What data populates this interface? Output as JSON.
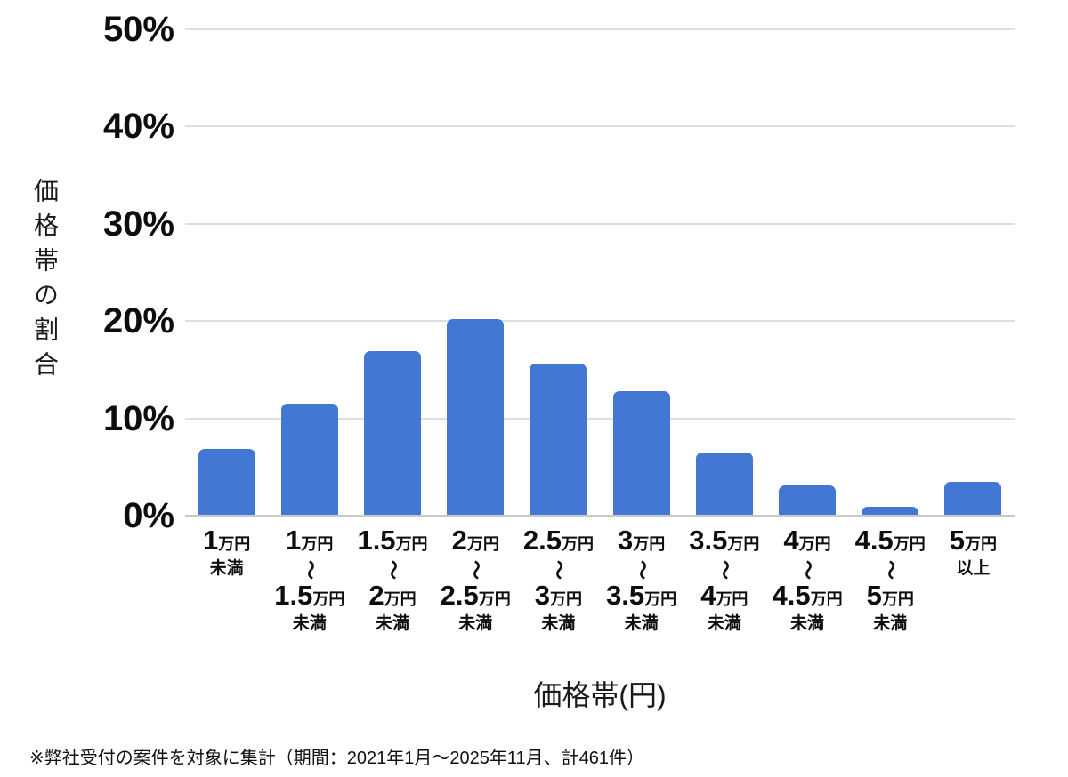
{
  "chart_data": {
    "type": "bar",
    "title": "",
    "xlabel": "価格帯(円)",
    "ylabel": "価格帯の割合",
    "ylim": [
      0,
      50
    ],
    "yticks": [
      {
        "value": 0,
        "label": "0%"
      },
      {
        "value": 10,
        "label": "10%"
      },
      {
        "value": 20,
        "label": "20%"
      },
      {
        "value": 30,
        "label": "30%"
      },
      {
        "value": 40,
        "label": "40%"
      },
      {
        "value": 50,
        "label": "50%"
      }
    ],
    "grid": true,
    "legend": "none",
    "bar_color": "#4377d4",
    "separator": "～",
    "categories": [
      {
        "main": "1",
        "unit": "万円",
        "to_main": null,
        "to_unit": null,
        "tail": "未満"
      },
      {
        "main": "1",
        "unit": "万円",
        "to_main": "1.5",
        "to_unit": "万円",
        "tail": "未満"
      },
      {
        "main": "1.5",
        "unit": "万円",
        "to_main": "2",
        "to_unit": "万円",
        "tail": "未満"
      },
      {
        "main": "2",
        "unit": "万円",
        "to_main": "2.5",
        "to_unit": "万円",
        "tail": "未満"
      },
      {
        "main": "2.5",
        "unit": "万円",
        "to_main": "3",
        "to_unit": "万円",
        "tail": "未満"
      },
      {
        "main": "3",
        "unit": "万円",
        "to_main": "3.5",
        "to_unit": "万円",
        "tail": "未満"
      },
      {
        "main": "3.5",
        "unit": "万円",
        "to_main": "4",
        "to_unit": "万円",
        "tail": "未満"
      },
      {
        "main": "4",
        "unit": "万円",
        "to_main": "4.5",
        "to_unit": "万円",
        "tail": "未満"
      },
      {
        "main": "4.5",
        "unit": "万円",
        "to_main": "5",
        "to_unit": "万円",
        "tail": "未満"
      },
      {
        "main": "5",
        "unit": "万円",
        "to_main": null,
        "to_unit": null,
        "tail": "以上"
      }
    ],
    "categories_text": [
      "1万円未満",
      "1万円～1.5万円未満",
      "1.5万円～2万円未満",
      "2万円～2.5万円未満",
      "2.5万円～3万円未満",
      "3万円～3.5万円未満",
      "3.5万円～4万円未満",
      "4万円～4.5万円未満",
      "4.5万円～5万円未満",
      "5万円以上"
    ],
    "values": [
      6.9,
      11.5,
      16.9,
      20.2,
      15.6,
      12.8,
      6.5,
      3.1,
      0.9,
      3.5
    ]
  },
  "footnote": "※弊社受付の案件を対象に集計（期間：2021年1月～2025年11月、計461件）"
}
